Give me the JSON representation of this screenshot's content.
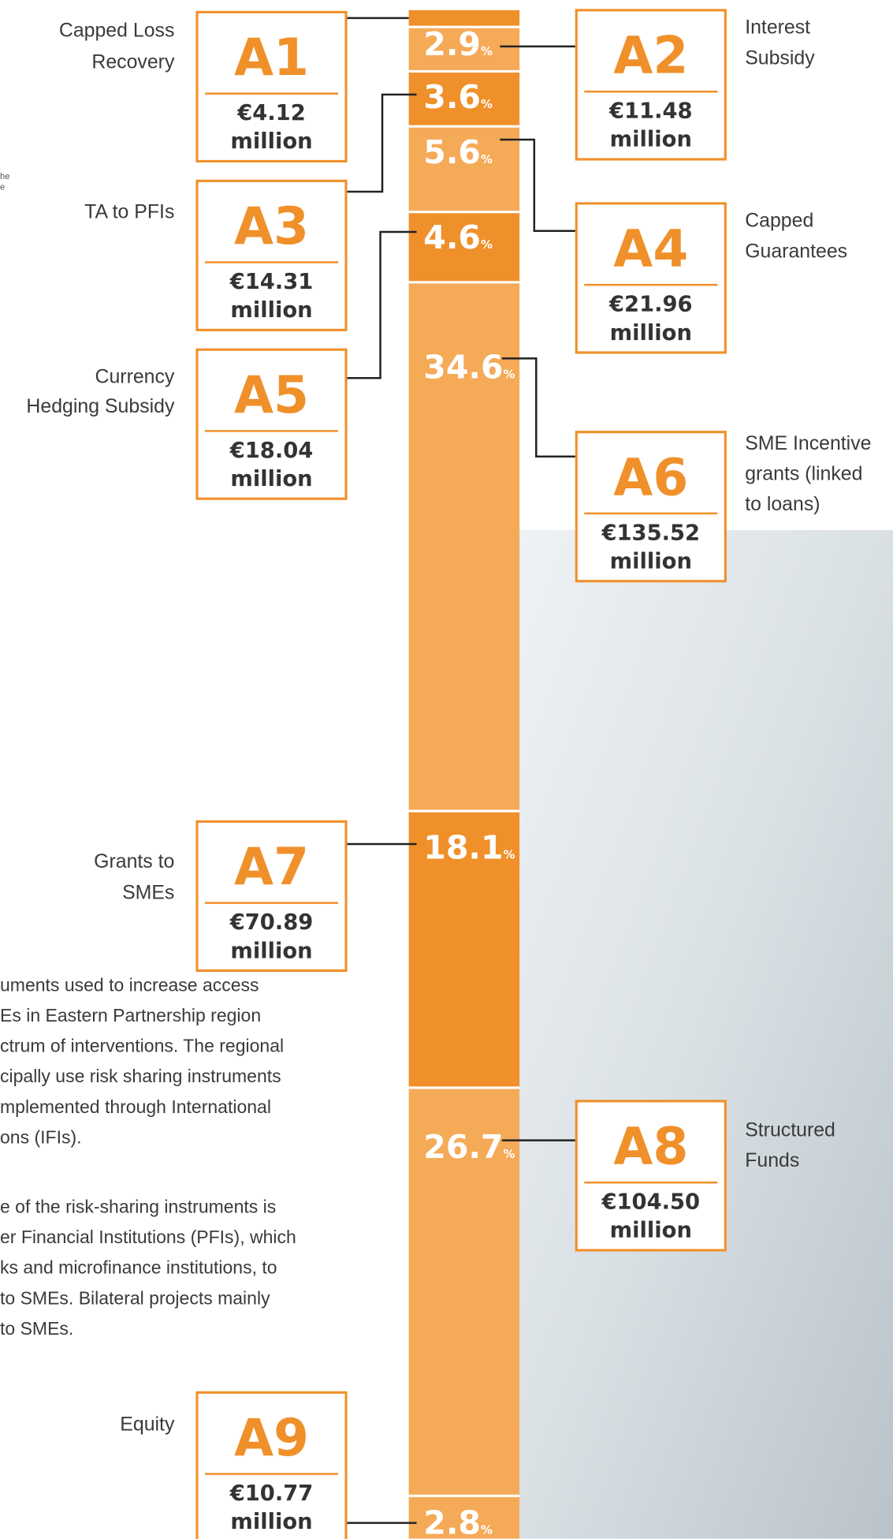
{
  "chart_data": {
    "type": "stacked-bar",
    "categories": [
      "A1",
      "A2",
      "A3",
      "A4",
      "A5",
      "A6",
      "A7",
      "A8",
      "A9"
    ],
    "names": [
      [
        "Capped Loss",
        "Recovery"
      ],
      [
        "Interest",
        "Subsidy"
      ],
      [
        "TA to PFIs"
      ],
      [
        "Capped",
        "Guarantees"
      ],
      [
        "Currency",
        "Hedging Subsidy"
      ],
      [
        "SME Incentive",
        "grants (linked",
        "to loans)"
      ],
      [
        "Grants to",
        "SMEs"
      ],
      [
        "Structured",
        "Funds"
      ],
      [
        "Equity"
      ]
    ],
    "amounts": [
      "€4.12",
      "€11.48",
      "€14.31",
      "€21.96",
      "€18.04",
      "€135.52",
      "€70.89",
      "€104.50",
      "€10.77"
    ],
    "amount_unit": "million",
    "values": [
      1.1,
      2.9,
      3.6,
      5.6,
      4.6,
      34.6,
      18.1,
      26.7,
      2.8
    ],
    "unit": "%",
    "colors": [
      "#f0902a",
      "#f5aa58",
      "#f0902a",
      "#f5aa58",
      "#f0902a",
      "#f5aa58",
      "#f0902a",
      "#f5aa58",
      "#f5aa58"
    ]
  },
  "text": {
    "fragment": [
      "he",
      "e"
    ],
    "paragraph_1": [
      "uments used to increase access",
      "Es in Eastern Partnership region",
      "ctrum of interventions. The regional",
      "cipally use risk sharing instruments",
      "mplemented through International",
      "ons (IFIs)."
    ],
    "paragraph_2": [
      "e of the risk-sharing instruments is",
      "er Financial Institutions (PFIs), which",
      "ks and microfinance institutions, to",
      "to SMEs. Bilateral projects mainly",
      "to SMEs."
    ]
  }
}
